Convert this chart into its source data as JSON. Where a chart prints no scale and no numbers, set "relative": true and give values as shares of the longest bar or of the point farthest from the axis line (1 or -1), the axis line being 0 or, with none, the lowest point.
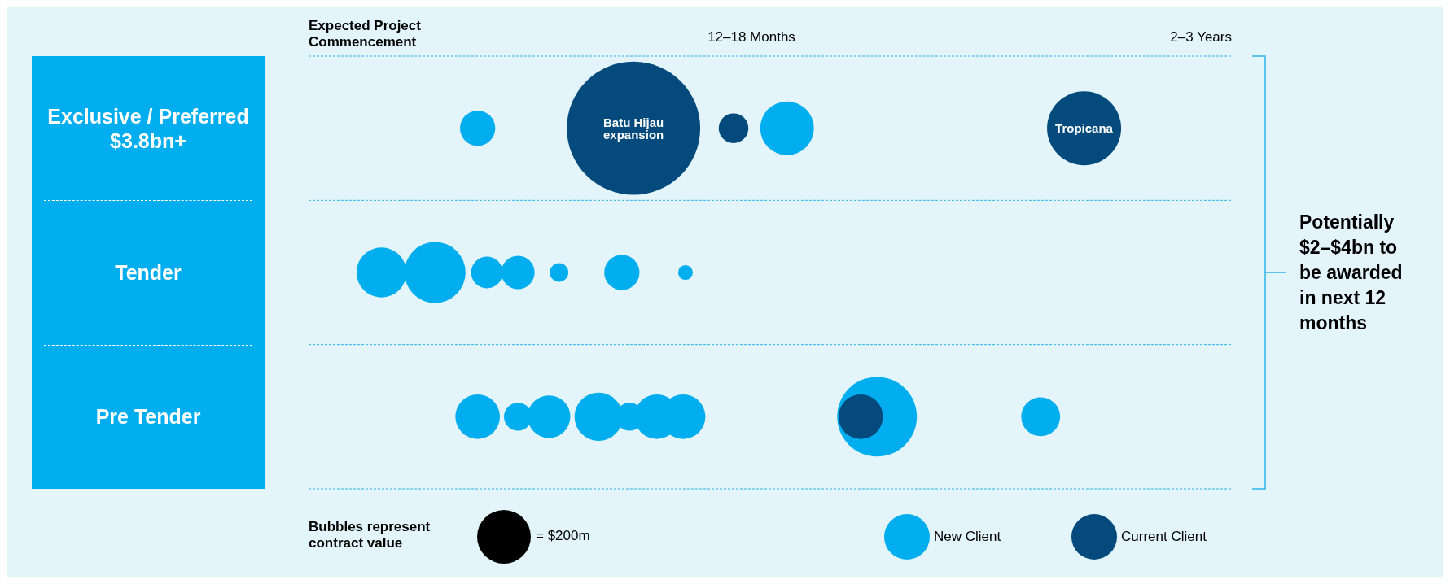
{
  "chart_data": {
    "type": "bubble",
    "orientation": "horizontal",
    "relative": true,
    "xlabel": "Expected Project Commencement",
    "categories": [
      "Exclusive / Preferred $3.8bn+",
      "Tender",
      "Pre Tender"
    ],
    "grid": "y",
    "legend": "bottom",
    "size_legend": [
      {
        "value": 200,
        "label": "= $200m"
      }
    ],
    "series": [
      {
        "name": "New Client",
        "color": "#00aeef",
        "values": [
          0.218,
          0.094,
          0.218
        ],
        "sizes": [
          86,
          173,
          137
        ]
      },
      {
        "color": "#00aeef",
        "values": [
          0.617,
          0.163,
          0.27
        ],
        "sizes": [
          200,
          259,
          54
        ]
      },
      {
        "color": "#00aeef",
        "values": [
          null,
          0.23,
          0.31
        ],
        "sizes": [
          null,
          69,
          126
        ]
      },
      {
        "color": "#00aeef",
        "values": [
          null,
          0.27,
          0.374
        ],
        "sizes": [
          null,
          77,
          161
        ]
      },
      {
        "color": "#00aeef",
        "values": [
          null,
          0.323,
          0.414
        ],
        "sizes": [
          null,
          24,
          54
        ]
      },
      {
        "color": "#00aeef",
        "values": [
          null,
          0.404,
          0.449
        ],
        "sizes": [
          null,
          86,
          137
        ]
      },
      {
        "color": "#00aeef",
        "values": [
          null,
          0.486,
          0.483
        ],
        "sizes": [
          null,
          15,
          137
        ]
      },
      {
        "color": "#00aeef",
        "values": [
          null,
          null,
          0.733
        ],
        "sizes": [
          null,
          null,
          440
        ]
      },
      {
        "color": "#00aeef",
        "values": [
          null,
          null,
          0.944
        ],
        "sizes": [
          null,
          null,
          105
        ]
      },
      {
        "name": "Current Client",
        "color": "#044a7c",
        "values": [
          0.419,
          null,
          0.712
        ],
        "sizes": [
          1233,
          null,
          137
        ]
      },
      {
        "color": "#044a7c",
        "values": [
          0.548,
          null,
          null
        ],
        "sizes": [
          61,
          null,
          null
        ]
      },
      {
        "color": "#044a7c",
        "values": [
          1,
          null,
          null
        ],
        "sizes": [
          380,
          null,
          null
        ]
      }
    ],
    "annotations": [
      "12–18 Months",
      "2–3 Years",
      "Bubbles represent contract value",
      "Potentially $2–$4bn to be awarded in next 12 months",
      {
        "text": "Batu Hijau expansion",
        "x": 0.419,
        "y": "Exclusive / Preferred $3.8bn+"
      },
      {
        "text": "Tropicana",
        "x": 1,
        "y": "Exclusive / Preferred $3.8bn+"
      }
    ]
  }
}
